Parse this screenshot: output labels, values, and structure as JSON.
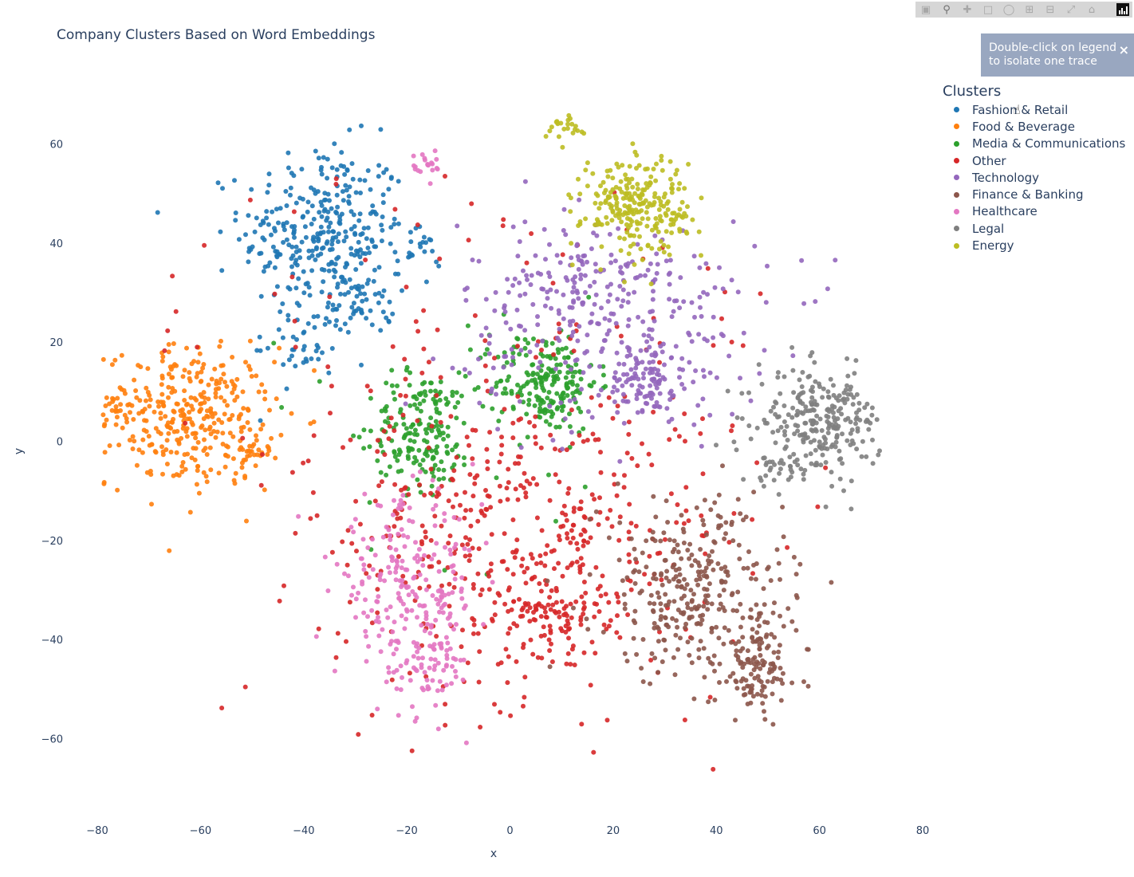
{
  "chart_data": {
    "type": "scatter",
    "title": "Company Clusters Based on Word Embeddings",
    "xlabel": "x",
    "ylabel": "y",
    "xlim": [
      -85,
      85
    ],
    "ylim": [
      -75,
      72
    ],
    "xticks": [
      -80,
      -60,
      -40,
      -20,
      0,
      20,
      40,
      60,
      80
    ],
    "yticks": [
      -60,
      -40,
      -20,
      0,
      20,
      40,
      60
    ],
    "grid": false,
    "legend_title": "Clusters",
    "legend_position": "top-right",
    "series": [
      {
        "name": "Fashion & Retail",
        "color": "#1f77b4",
        "clusters": [
          {
            "cx": -36,
            "cy": 42,
            "sx": 8,
            "sy": 9,
            "n": 330
          },
          {
            "cx": -28,
            "cy": 28,
            "sx": 3,
            "sy": 3,
            "n": 40
          },
          {
            "cx": -18,
            "cy": 38,
            "sx": 2,
            "sy": 2,
            "n": 18
          },
          {
            "cx": -40,
            "cy": 20,
            "sx": 4,
            "sy": 4,
            "n": 40
          }
        ]
      },
      {
        "name": "Food & Beverage",
        "color": "#ff7f0e",
        "clusters": [
          {
            "cx": -62,
            "cy": 5,
            "sx": 8,
            "sy": 7,
            "n": 330
          },
          {
            "cx": -50,
            "cy": -2,
            "sx": 2,
            "sy": 2,
            "n": 30
          },
          {
            "cx": -77,
            "cy": 6,
            "sx": 1.5,
            "sy": 2,
            "n": 20
          }
        ]
      },
      {
        "name": "Media & Communications",
        "color": "#2ca02c",
        "clusters": [
          {
            "cx": 7,
            "cy": 12,
            "sx": 5,
            "sy": 5,
            "n": 200
          },
          {
            "cx": -17,
            "cy": 2,
            "sx": 5,
            "sy": 6,
            "n": 180
          },
          {
            "cx": -10,
            "cy": 8,
            "sx": 20,
            "sy": 15,
            "n": 30
          }
        ]
      },
      {
        "name": "Other",
        "color": "#d62728",
        "clusters": [
          {
            "cx": 2,
            "cy": -20,
            "sx": 18,
            "sy": 16,
            "n": 420
          },
          {
            "cx": 8,
            "cy": -35,
            "sx": 5,
            "sy": 4,
            "n": 90
          },
          {
            "cx": -5,
            "cy": 10,
            "sx": 30,
            "sy": 25,
            "n": 150
          }
        ]
      },
      {
        "name": "Technology",
        "color": "#9467bd",
        "clusters": [
          {
            "cx": 20,
            "cy": 25,
            "sx": 15,
            "sy": 10,
            "n": 300
          },
          {
            "cx": 27,
            "cy": 12,
            "sx": 4,
            "sy": 4,
            "n": 100
          },
          {
            "cx": 10,
            "cy": 35,
            "sx": 5,
            "sy": 3,
            "n": 40
          }
        ]
      },
      {
        "name": "Finance & Banking",
        "color": "#8c564b",
        "clusters": [
          {
            "cx": 35,
            "cy": -30,
            "sx": 9,
            "sy": 9,
            "n": 300
          },
          {
            "cx": 48,
            "cy": -45,
            "sx": 4,
            "sy": 6,
            "n": 130
          }
        ]
      },
      {
        "name": "Healthcare",
        "color": "#e377c2",
        "clusters": [
          {
            "cx": -20,
            "cy": -30,
            "sx": 7,
            "sy": 9,
            "n": 230
          },
          {
            "cx": -15,
            "cy": -45,
            "sx": 3,
            "sy": 5,
            "n": 60
          },
          {
            "cx": -16,
            "cy": 56,
            "sx": 1.5,
            "sy": 1.5,
            "n": 20
          }
        ]
      },
      {
        "name": "Legal",
        "color": "#7f7f7f",
        "clusters": [
          {
            "cx": 60,
            "cy": 4,
            "sx": 6,
            "sy": 5,
            "n": 260
          },
          {
            "cx": 52,
            "cy": -6,
            "sx": 3,
            "sy": 2,
            "n": 25
          }
        ]
      },
      {
        "name": "Energy",
        "color": "#bcbd22",
        "clusters": [
          {
            "cx": 24,
            "cy": 48,
            "sx": 5,
            "sy": 5,
            "n": 230
          },
          {
            "cx": 11,
            "cy": 63,
            "sx": 2,
            "sy": 2,
            "n": 25
          },
          {
            "cx": 32,
            "cy": 46,
            "sx": 2,
            "sy": 2,
            "n": 20
          }
        ]
      }
    ]
  },
  "hint": {
    "line1": "Double-click on legend",
    "line2": "to isolate one trace",
    "close": "×"
  },
  "modebar": {
    "icons": [
      "camera-icon",
      "zoom-icon",
      "pan-icon",
      "box-select-icon",
      "lasso-icon",
      "zoom-in-icon",
      "zoom-out-icon",
      "autoscale-icon",
      "reset-axes-icon",
      "plotly-logo-icon"
    ]
  }
}
